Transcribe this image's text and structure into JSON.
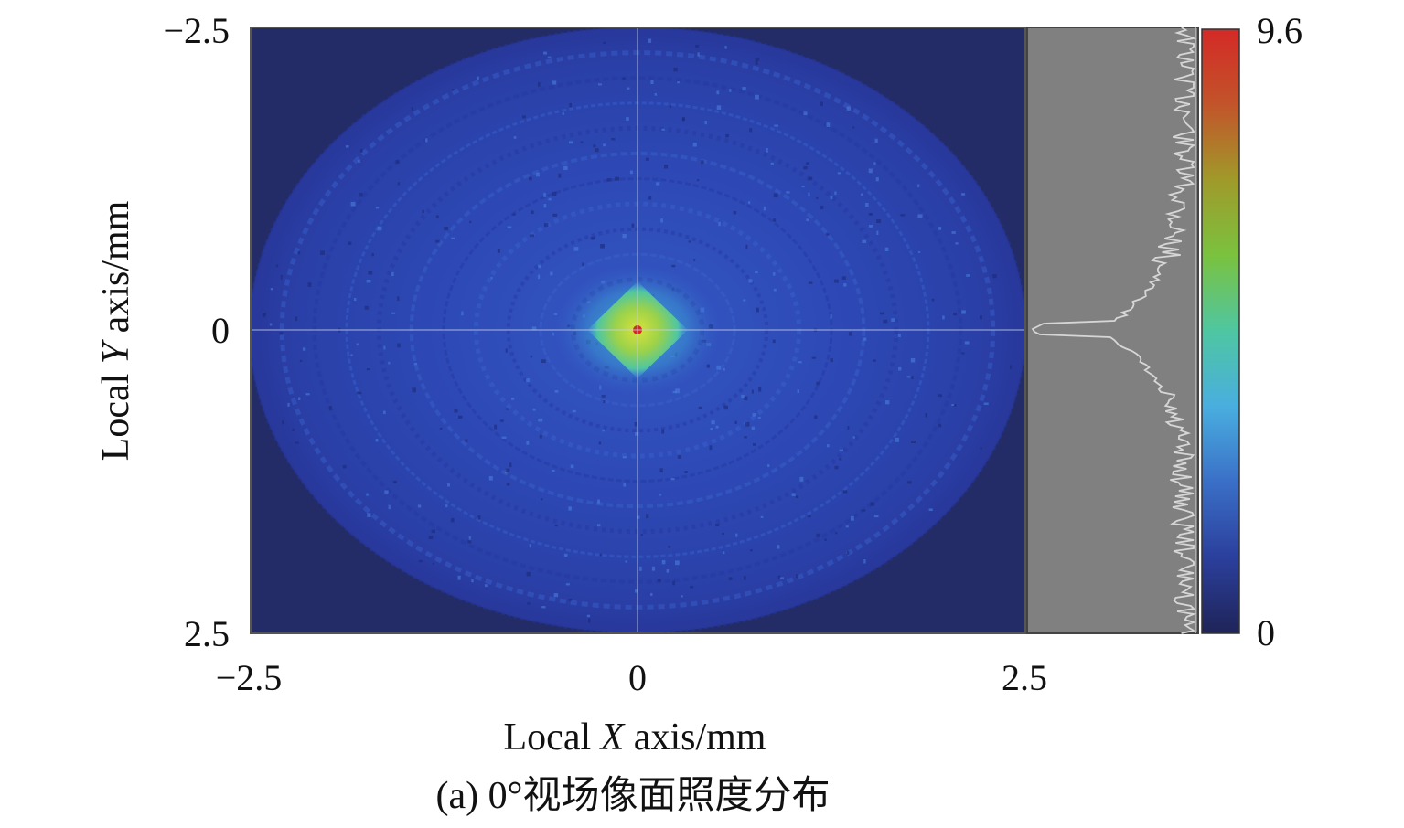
{
  "chart_data": {
    "type": "heatmap",
    "title": "",
    "caption": "(a) 0°视场像面照度分布",
    "xlabel": {
      "prefix": "Local ",
      "variable": "X",
      "suffix": " axis/mm"
    },
    "ylabel": {
      "prefix": "Local ",
      "variable": "Y",
      "suffix": " axis/mm"
    },
    "xlim": [
      -2.5,
      2.5
    ],
    "ylim": [
      -2.5,
      2.5
    ],
    "y_inverted": true,
    "x_ticks": [
      {
        "value": -2.5,
        "label": "−2.5"
      },
      {
        "value": 0,
        "label": "0"
      },
      {
        "value": 2.5,
        "label": "2.5"
      }
    ],
    "y_ticks": [
      {
        "value": -2.5,
        "label": "−2.5"
      },
      {
        "value": 0,
        "label": "0"
      },
      {
        "value": 2.5,
        "label": "2.5"
      }
    ],
    "colorbar": {
      "min": 0,
      "max": 9.6,
      "min_label": "0",
      "max_label": "9.6",
      "colors": [
        "#1f2458",
        "#2b3f9c",
        "#3a6fc7",
        "#49aedf",
        "#4fc6a2",
        "#7ac23f",
        "#a09a2a",
        "#c2542a",
        "#d42a26"
      ]
    },
    "intensity_field": {
      "peak_x": 0,
      "peak_y": 0,
      "peak_value": 9.6,
      "core_color": "#cfe13c",
      "halo_color": "#2e9cc9",
      "disk_color": "#2c45b6",
      "background_color": "#232c66"
    },
    "profile_panel": {
      "background_color": "#808080",
      "line_color": "#d6d6d6"
    }
  }
}
